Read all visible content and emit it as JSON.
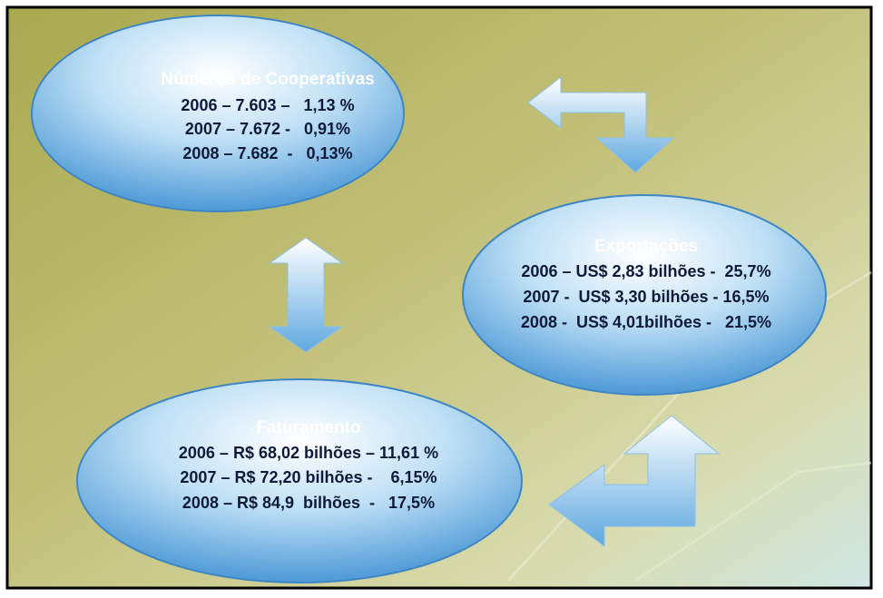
{
  "nodes": [
    {
      "title": "Números de Cooperativas",
      "lines": [
        "2006 – 7.603 –   1,13 %",
        "2007 – 7.672 -   0,91%",
        "2008 – 7.682  -   0,13%"
      ]
    },
    {
      "title": "Exportações",
      "lines": [
        "2006 – US$ 2,83 bilhões -  25,7%",
        "2007 -  US$ 3,30 bilhões - 16,5%",
        "2008 -  US$ 4,01bilhões -   21,5%"
      ]
    },
    {
      "title": "Faturamento",
      "lines": [
        "2006 – R$ 68,02 bilhões – 11,61 %",
        "2007 – R$ 72,20 bilhões -    6,15%",
        "2008 – R$ 84,9  bilhões  -   17,5%"
      ]
    }
  ]
}
